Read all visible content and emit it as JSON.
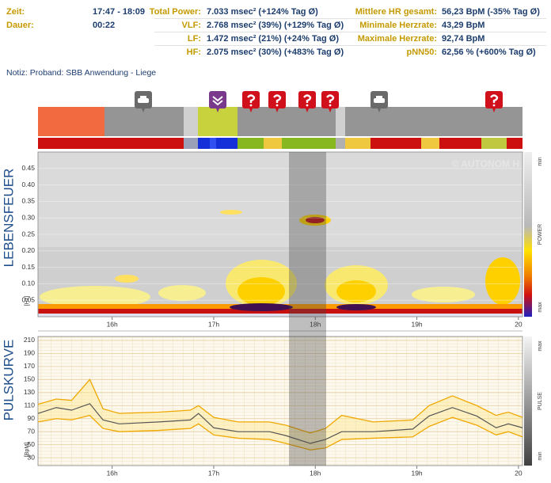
{
  "header": {
    "rows": [
      [
        "Zeit:",
        "17:47 - 18:09",
        "Total Power:",
        "7.033 msec² (+124% Tag Ø)",
        "Mittlere HR gesamt:",
        "56,23 BpM (-35% Tag Ø)"
      ],
      [
        "Dauer:",
        "00:22",
        "VLF:",
        "2.768 msec² (39%) (+129% Tag Ø)",
        "Minimale Herzrate:",
        "43,29 BpM"
      ],
      [
        null,
        null,
        "LF:",
        "1.472 msec² (21%) (+24% Tag Ø)",
        "Maximale Herzrate:",
        "92,74 BpM"
      ],
      [
        null,
        null,
        "HF:",
        "2.075 msec² (30%) (+483% Tag Ø)",
        "pNN50:",
        "62,56 % (+600% Tag Ø)"
      ]
    ],
    "note": "Notiz: Proband: SBB Anwendung - Liege"
  },
  "chart_data": [
    {
      "type": "spectrogram",
      "title": "LEBENSFEUER",
      "ylabel": "[Hz]",
      "watermark": "© AUTONOM H",
      "scale_labels": [
        "min",
        "POWER",
        "max"
      ],
      "xlim": [
        15.27,
        20.04
      ],
      "xticks": [
        {
          "value": 16,
          "label": "16h"
        },
        {
          "value": 17,
          "label": "17h"
        },
        {
          "value": 18,
          "label": "18h"
        },
        {
          "value": 19,
          "label": "19h"
        },
        {
          "value": 20,
          "label": "20"
        }
      ],
      "ylim": [
        0,
        0.5
      ],
      "yticks": [
        0.05,
        {
          "value": 0.1,
          "label": "0.10"
        },
        0.15,
        {
          "value": 0.2,
          "label": "0.20"
        },
        0.25,
        {
          "value": 0.3,
          "label": "0.30"
        },
        0.35,
        {
          "value": 0.4,
          "label": "0.40"
        },
        0.45
      ],
      "grid": true
    },
    {
      "type": "line",
      "title": "PULSKURVE",
      "ylabel": "[BpM]",
      "scale_labels": [
        "max",
        "PULSE",
        "min"
      ],
      "xlim": [
        15.27,
        20.04
      ],
      "xticks": [
        {
          "value": 16,
          "label": "16h"
        },
        {
          "value": 17,
          "label": "17h"
        },
        {
          "value": 18,
          "label": "18h"
        },
        {
          "value": 19,
          "label": "19h"
        },
        {
          "value": 20,
          "label": "20"
        }
      ],
      "ylim": [
        18,
        216
      ],
      "yticks": [
        30,
        50,
        70,
        90,
        110,
        130,
        150,
        170,
        190,
        210
      ],
      "grid": true,
      "x": [
        15.27,
        15.45,
        15.6,
        15.78,
        15.91,
        16.07,
        16.46,
        16.77,
        16.85,
        17.0,
        17.24,
        17.55,
        17.71,
        17.95,
        18.1,
        18.26,
        18.57,
        18.96,
        19.12,
        19.35,
        19.59,
        19.78,
        19.9,
        20.04
      ],
      "series": [
        {
          "color": "#555555",
          "values": [
            98,
            107,
            103,
            113,
            88,
            82,
            85,
            88,
            98,
            76,
            70,
            70,
            64,
            52,
            58,
            70,
            70,
            74,
            94,
            107,
            94,
            76,
            82,
            76
          ]
        },
        {
          "color": "#f0a800",
          "values": [
            112,
            120,
            118,
            150,
            105,
            98,
            100,
            103,
            110,
            92,
            85,
            85,
            80,
            68,
            75,
            95,
            85,
            88,
            110,
            125,
            110,
            95,
            100,
            92
          ]
        },
        {
          "color": "#f0a800",
          "values": [
            85,
            90,
            88,
            95,
            75,
            70,
            72,
            75,
            82,
            65,
            60,
            58,
            52,
            42,
            45,
            58,
            60,
            62,
            78,
            92,
            80,
            65,
            70,
            62
          ]
        }
      ]
    }
  ]
}
